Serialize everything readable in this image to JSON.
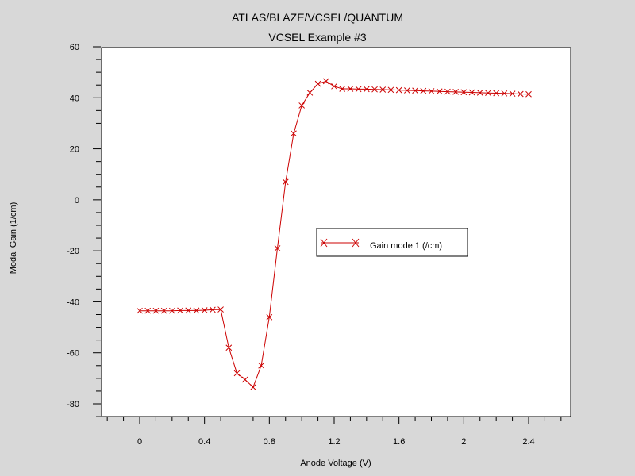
{
  "chart_data": {
    "type": "line",
    "title": "ATLAS/BLAZE/VCSEL/QUANTUM",
    "subtitle": "VCSEL Example #3",
    "xlabel": "Anode Voltage (V)",
    "ylabel": "Modal Gain (1/cm)",
    "xlim": [
      -0.2,
      2.65
    ],
    "ylim": [
      -85,
      60
    ],
    "x_ticks": [
      0,
      0.4,
      0.8,
      1.2,
      1.6,
      2,
      2.4
    ],
    "x_tick_labels": [
      "0",
      "0.4",
      "0.8",
      "1.2",
      "1.6",
      "2",
      "2.4"
    ],
    "y_ticks": [
      60,
      40,
      20,
      0,
      -20,
      -40,
      -60,
      -80
    ],
    "y_tick_labels": [
      "60",
      "40",
      "20",
      "0",
      "-20",
      "-40",
      "-60",
      "-80"
    ],
    "grid": false,
    "legend_position": "center-right",
    "series": [
      {
        "name": "Gain mode 1 (/cm)",
        "color": "#cc0000",
        "marker": "x",
        "x": [
          0,
          0.05,
          0.1,
          0.15,
          0.2,
          0.25,
          0.3,
          0.35,
          0.4,
          0.45,
          0.5,
          0.55,
          0.6,
          0.65,
          0.7,
          0.75,
          0.8,
          0.85,
          0.9,
          0.95,
          1.0,
          1.05,
          1.1,
          1.15,
          1.2,
          1.25,
          1.3,
          1.35,
          1.4,
          1.45,
          1.5,
          1.55,
          1.6,
          1.65,
          1.7,
          1.75,
          1.8,
          1.85,
          1.9,
          1.95,
          2.0,
          2.05,
          2.1,
          2.15,
          2.2,
          2.25,
          2.3,
          2.35,
          2.4
        ],
        "y": [
          -43.5,
          -43.5,
          -43.5,
          -43.5,
          -43.5,
          -43.4,
          -43.4,
          -43.4,
          -43.3,
          -43.1,
          -43.0,
          -58,
          -68,
          -70.5,
          -73.5,
          -65,
          -46,
          -19,
          7,
          26,
          37,
          42,
          45.5,
          46.5,
          44.5,
          43.5,
          43.5,
          43.4,
          43.4,
          43.3,
          43.2,
          43.1,
          43.0,
          42.9,
          42.8,
          42.7,
          42.6,
          42.5,
          42.4,
          42.3,
          42.2,
          42.1,
          42.0,
          41.9,
          41.8,
          41.7,
          41.6,
          41.5,
          41.4
        ]
      }
    ]
  }
}
